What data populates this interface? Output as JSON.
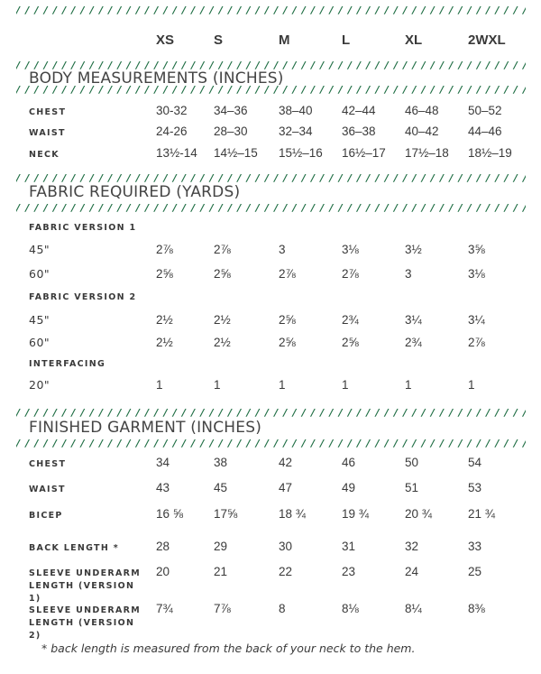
{
  "sizes": [
    "XS",
    "S",
    "M",
    "L",
    "XL",
    "2WXL"
  ],
  "colors": {
    "divider": "#1f6e44",
    "text": "#3a3a3a"
  },
  "sections": {
    "body": {
      "title": "BODY MEASUREMENTS (INCHES)",
      "rows": [
        {
          "label": "CHEST",
          "values": [
            "30-32",
            "34–36",
            "38–40",
            "42–44",
            "46–48",
            "50–52"
          ]
        },
        {
          "label": "WAIST",
          "values": [
            "24-26",
            "28–30",
            "32–34",
            "36–38",
            "40–42",
            "44–46"
          ]
        },
        {
          "label": "NECK",
          "values": [
            "13½-14",
            "14½–15",
            "15½–16",
            "16½–17",
            "17½–18",
            "18½–19"
          ]
        }
      ]
    },
    "fabric": {
      "title": "FABRIC REQUIRED (YARDS)",
      "groups": [
        {
          "label": "FABRIC VERSION 1",
          "rows": [
            {
              "label": "45\"",
              "values": [
                "2⅞",
                "2⅞",
                "3",
                "3⅛",
                "3½",
                "3⅝"
              ]
            },
            {
              "label": "60\"",
              "values": [
                "2⅝",
                "2⅝",
                "2⅞",
                "2⅞",
                "3",
                "3⅛"
              ]
            }
          ]
        },
        {
          "label": "FABRIC VERSION 2",
          "rows": [
            {
              "label": "45\"",
              "values": [
                "2½",
                "2½",
                "2⅝",
                "2¾",
                "3¼",
                "3¼"
              ]
            },
            {
              "label": "60\"",
              "values": [
                "2½",
                "2½",
                "2⅝",
                "2⅝",
                "2¾",
                "2⅞"
              ]
            }
          ]
        },
        {
          "label": "INTERFACING",
          "rows": [
            {
              "label": "20\"",
              "values": [
                "1",
                "1",
                "1",
                "1",
                "1",
                "1"
              ]
            }
          ]
        }
      ]
    },
    "finished": {
      "title": "FINISHED GARMENT (INCHES)",
      "rows": [
        {
          "label": "CHEST",
          "values": [
            "34",
            "38",
            "42",
            "46",
            "50",
            "54"
          ]
        },
        {
          "label": "WAIST",
          "values": [
            "43",
            "45",
            "47",
            "49",
            "51",
            "53"
          ]
        },
        {
          "label": "BICEP",
          "values": [
            "16 ⅝",
            "17⅝",
            "18 ¾",
            "19 ¾",
            "20 ¾",
            "21 ¾"
          ]
        },
        {
          "label": "BACK LENGTH *",
          "values": [
            "28",
            "29",
            "30",
            "31",
            "32",
            "33"
          ]
        },
        {
          "label": "SLEEVE UNDERARM LENGTH (VERSION 1)",
          "values": [
            "20",
            "21",
            "22",
            "23",
            "24",
            "25"
          ]
        },
        {
          "label": "SLEEVE UNDERARM LENGTH (VERSION 2)",
          "values": [
            "7¾",
            "7⅞",
            "8",
            "8⅛",
            "8¼",
            "8⅜"
          ]
        }
      ]
    }
  },
  "footnote": "* back length is measured from the back of your neck to the hem."
}
